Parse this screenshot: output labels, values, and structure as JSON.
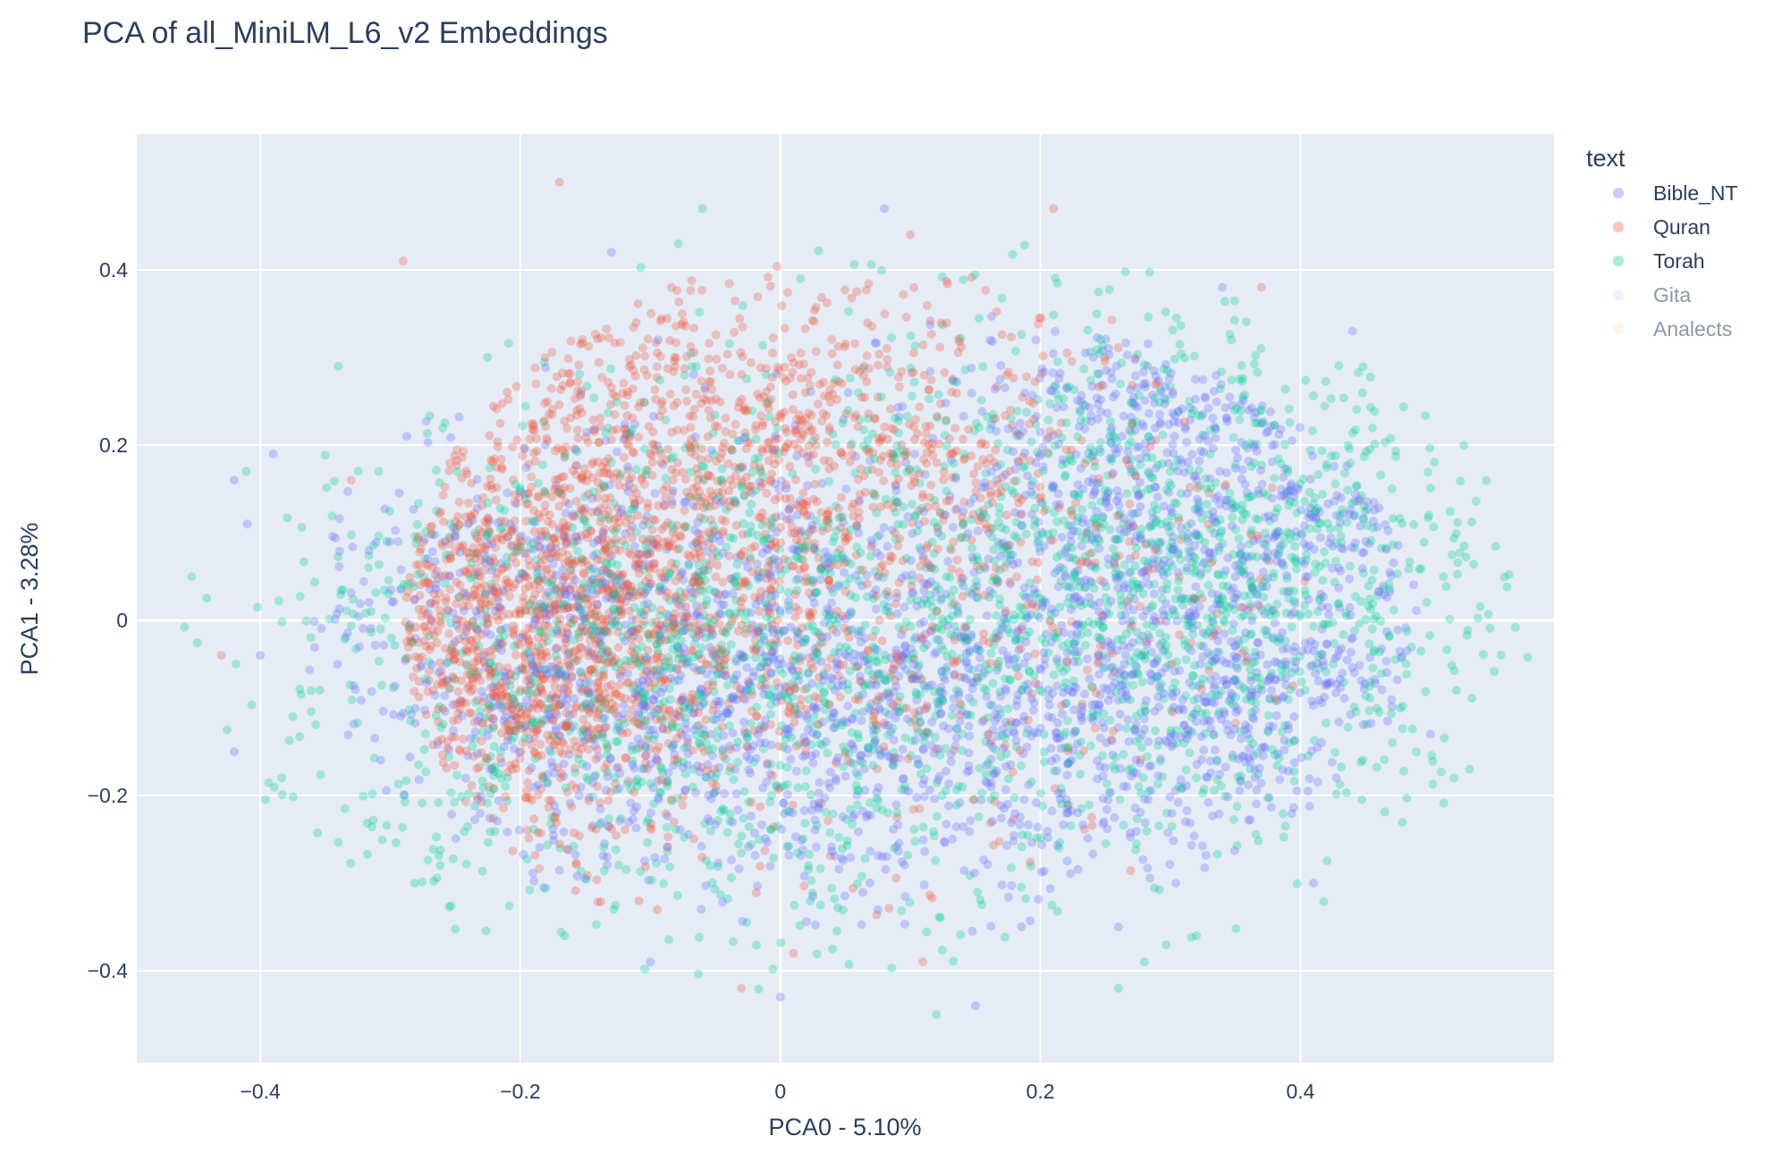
{
  "chart_data": {
    "type": "scatter",
    "title": "PCA of all_MiniLM_L6_v2 Embeddings",
    "xlabel": "PCA0 - 5.10%",
    "ylabel": "PCA1 - 3.28%",
    "xlim": [
      -0.495,
      0.595
    ],
    "ylim": [
      -0.505,
      0.555
    ],
    "x_ticks": [
      -0.4,
      -0.2,
      0,
      0.2,
      0.4
    ],
    "x_tick_labels": [
      "−0.4",
      "−0.2",
      "0",
      "0.2",
      "0.4"
    ],
    "y_ticks": [
      -0.4,
      -0.2,
      0,
      0.2,
      0.4
    ],
    "y_tick_labels": [
      "−0.4",
      "−0.2",
      "0",
      "0.2",
      "0.4"
    ],
    "grid": true,
    "plot_background": "#e5ecf6",
    "legend": {
      "title": "text",
      "placement": "right",
      "entries": [
        "Bible_NT",
        "Quran",
        "Torah",
        "Gita",
        "Analects"
      ]
    },
    "series": [
      {
        "name": "Bible_NT",
        "color": "#636efa",
        "visible": true,
        "clusters": [
          {
            "cx": 0.32,
            "cy": -0.05,
            "sx": 0.13,
            "sy": 0.13
          },
          {
            "cx": 0.05,
            "cy": -0.12,
            "sx": 0.13,
            "sy": 0.1
          },
          {
            "cx": -0.15,
            "cy": 0.0,
            "sx": 0.13,
            "sy": 0.12
          },
          {
            "cx": 0.3,
            "cy": 0.2,
            "sx": 0.1,
            "sy": 0.08
          }
        ],
        "cluster_weights": [
          0.35,
          0.25,
          0.25,
          0.15
        ],
        "spread_x": 0.43,
        "spread_y": 0.37,
        "sample_points": [
          [
            -0.42,
            0.16
          ],
          [
            -0.41,
            0.11
          ],
          [
            -0.39,
            0.19
          ],
          [
            -0.4,
            -0.04
          ],
          [
            -0.42,
            -0.15
          ],
          [
            0.08,
            0.47
          ],
          [
            -0.13,
            0.42
          ],
          [
            0.44,
            0.33
          ],
          [
            0.5,
            -0.13
          ],
          [
            0.41,
            -0.3
          ],
          [
            0.26,
            -0.35
          ],
          [
            -0.1,
            -0.39
          ],
          [
            0.15,
            -0.44
          ],
          [
            0.0,
            -0.43
          ],
          [
            0.34,
            0.38
          ]
        ]
      },
      {
        "name": "Quran",
        "color": "#ef553b",
        "visible": true,
        "clusters": [
          {
            "cx": -0.2,
            "cy": -0.02,
            "sx": 0.1,
            "sy": 0.12
          },
          {
            "cx": -0.05,
            "cy": 0.22,
            "sx": 0.13,
            "sy": 0.09
          },
          {
            "cx": 0.1,
            "cy": 0.05,
            "sx": 0.13,
            "sy": 0.13
          }
        ],
        "cluster_weights": [
          0.55,
          0.25,
          0.2
        ],
        "spread_x": 0.35,
        "spread_y": 0.42,
        "sample_points": [
          [
            -0.17,
            0.5
          ],
          [
            -0.43,
            -0.04
          ],
          [
            0.1,
            0.44
          ],
          [
            0.21,
            0.47
          ],
          [
            -0.03,
            -0.42
          ],
          [
            0.01,
            -0.38
          ],
          [
            -0.29,
            0.41
          ],
          [
            0.37,
            0.38
          ],
          [
            -0.33,
            0.16
          ]
        ]
      },
      {
        "name": "Torah",
        "color": "#00cc96",
        "visible": true,
        "clusters": [
          {
            "cx": 0.35,
            "cy": 0.05,
            "sx": 0.1,
            "sy": 0.14
          },
          {
            "cx": -0.12,
            "cy": -0.05,
            "sx": 0.14,
            "sy": 0.14
          },
          {
            "cx": 0.1,
            "cy": 0.0,
            "sx": 0.14,
            "sy": 0.17
          }
        ],
        "cluster_weights": [
          0.35,
          0.35,
          0.3
        ],
        "spread_x": 0.52,
        "spread_y": 0.45,
        "sample_points": [
          [
            -0.06,
            0.47
          ],
          [
            0.12,
            -0.45
          ],
          [
            0.28,
            -0.39
          ],
          [
            0.32,
            -0.36
          ],
          [
            0.53,
            -0.17
          ],
          [
            0.52,
            -0.08
          ],
          [
            0.51,
            0.05
          ],
          [
            -0.34,
            0.29
          ],
          [
            0.26,
            -0.42
          ]
        ]
      },
      {
        "name": "Gita",
        "color": "#ab63fa",
        "visible": false
      },
      {
        "name": "Analects",
        "color": "#ffa15a",
        "visible": false
      }
    ]
  }
}
